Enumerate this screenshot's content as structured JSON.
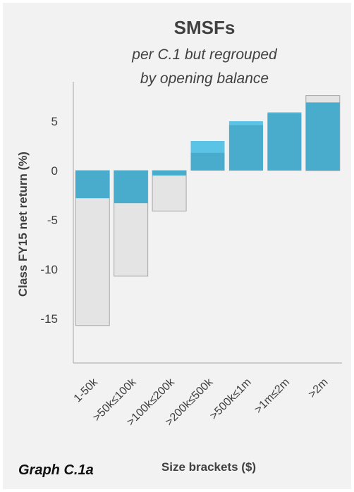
{
  "chart_data": {
    "type": "bar",
    "title": "SMSFs",
    "subtitle_lines": [
      "per C.1 but regrouped",
      "by opening balance"
    ],
    "xlabel": "Size brackets ($)",
    "ylabel": "Class FY15 net return (%)",
    "categories": [
      "1-50k",
      ">50k≤100k",
      ">100k≤200k",
      ">200k≤500k",
      ">500k≤1m",
      ">1m≤2m",
      ">2m"
    ],
    "yticks": [
      5,
      0,
      -5,
      -10,
      -15
    ],
    "ytick_labels": [
      "5",
      "0",
      "-5",
      "-10",
      "-15"
    ],
    "ylim": [
      -19.5,
      9
    ],
    "series": [
      {
        "values": [
          -2.8,
          -3.3,
          -0.5,
          1.8,
          4.6,
          5.8,
          6.9
        ]
      },
      {
        "values": [
          0,
          0,
          -0.5,
          3.0,
          5.0,
          5.9,
          6.9
        ]
      },
      {
        "values": [
          -15.7,
          -10.7,
          -4.1,
          0,
          0,
          0,
          7.6
        ]
      }
    ],
    "colors": {
      "main": "#4aaccd",
      "light": "#5bc3e6",
      "range": "#e4e4e4",
      "range_stroke": "#a6a6a6",
      "axis": "#bfbfbf"
    },
    "grid": false,
    "legend": "none"
  },
  "caption": "Graph C.1a"
}
